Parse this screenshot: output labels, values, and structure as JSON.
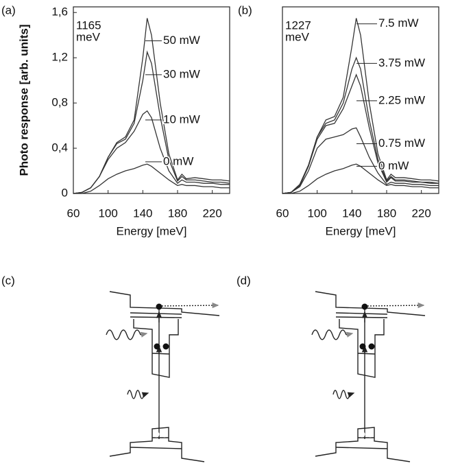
{
  "chart_data": [
    {
      "type": "line",
      "panel": "(a)",
      "annotation": [
        "1165",
        "meV"
      ],
      "x_label": "Energy [meV]",
      "y_label": "Photo response [arb. units]",
      "x": [
        60,
        70,
        80,
        90,
        100,
        110,
        120,
        130,
        140,
        145,
        150,
        160,
        170,
        180,
        185,
        190,
        200,
        210,
        220,
        230,
        240
      ],
      "xlim": [
        60,
        240
      ],
      "xticks": [
        60,
        100,
        140,
        180,
        220
      ],
      "ylim": [
        0,
        1.65
      ],
      "yticks": [
        0,
        {
          "value": 0.4,
          "label": "0,4"
        },
        {
          "value": 0.8,
          "label": "0,8"
        },
        {
          "value": 1.2,
          "label": "1,2"
        },
        {
          "value": 1.6,
          "label": "1,6"
        }
      ],
      "series": [
        {
          "name": "50 mW",
          "color": "#333333",
          "values": [
            0,
            0.01,
            0.05,
            0.15,
            0.32,
            0.45,
            0.5,
            0.65,
            1.2,
            1.55,
            1.4,
            0.8,
            0.35,
            0.12,
            0.17,
            0.13,
            0.14,
            0.13,
            0.12,
            0.12,
            0.11
          ]
        },
        {
          "name": "30 mW",
          "color": "#333333",
          "values": [
            0,
            0.01,
            0.05,
            0.15,
            0.32,
            0.44,
            0.48,
            0.62,
            1.0,
            1.25,
            1.15,
            0.68,
            0.3,
            0.11,
            0.15,
            0.12,
            0.12,
            0.11,
            0.1,
            0.1,
            0.09
          ]
        },
        {
          "name": "10 mW",
          "color": "#333333",
          "values": [
            0,
            0.01,
            0.05,
            0.15,
            0.3,
            0.4,
            0.45,
            0.55,
            0.7,
            0.73,
            0.67,
            0.4,
            0.2,
            0.09,
            0.12,
            0.1,
            0.1,
            0.09,
            0.09,
            0.08,
            0.08
          ]
        },
        {
          "name": "0 mW",
          "color": "#333333",
          "values": [
            0,
            0,
            0.02,
            0.07,
            0.13,
            0.17,
            0.2,
            0.22,
            0.25,
            0.26,
            0.24,
            0.18,
            0.12,
            0.07,
            0.08,
            0.07,
            0.07,
            0.06,
            0.06,
            0.05,
            0.05
          ]
        }
      ]
    },
    {
      "type": "line",
      "panel": "(b)",
      "annotation": [
        "1227",
        "meV"
      ],
      "x_label": "Energy [meV]",
      "x": [
        60,
        70,
        80,
        90,
        100,
        110,
        120,
        130,
        140,
        145,
        150,
        160,
        170,
        180,
        185,
        190,
        200,
        210,
        220,
        230,
        240
      ],
      "xlim": [
        60,
        240
      ],
      "xticks": [
        60,
        100,
        140,
        180,
        220
      ],
      "ylim": [
        0,
        1.65
      ],
      "series": [
        {
          "name": "7.5 mW",
          "color": "#333333",
          "values": [
            0,
            0.01,
            0.08,
            0.25,
            0.5,
            0.65,
            0.68,
            0.85,
            1.3,
            1.55,
            1.4,
            0.8,
            0.35,
            0.12,
            0.17,
            0.14,
            0.14,
            0.13,
            0.12,
            0.12,
            0.11
          ]
        },
        {
          "name": "3.75 mW",
          "color": "#333333",
          "values": [
            0,
            0.01,
            0.08,
            0.25,
            0.5,
            0.62,
            0.65,
            0.8,
            1.1,
            1.2,
            1.1,
            0.65,
            0.3,
            0.11,
            0.15,
            0.12,
            0.12,
            0.11,
            0.1,
            0.1,
            0.09
          ]
        },
        {
          "name": "2.25 mW",
          "color": "#333333",
          "values": [
            0,
            0.01,
            0.07,
            0.24,
            0.48,
            0.6,
            0.62,
            0.75,
            0.95,
            1.05,
            0.95,
            0.58,
            0.27,
            0.1,
            0.14,
            0.11,
            0.11,
            0.1,
            0.1,
            0.09,
            0.09
          ]
        },
        {
          "name": "0.75 mW",
          "color": "#333333",
          "values": [
            0,
            0.01,
            0.06,
            0.2,
            0.4,
            0.48,
            0.5,
            0.52,
            0.57,
            0.58,
            0.5,
            0.32,
            0.18,
            0.08,
            0.1,
            0.09,
            0.09,
            0.08,
            0.08,
            0.07,
            0.07
          ]
        },
        {
          "name": "0 mW",
          "color": "#333333",
          "values": [
            0,
            0,
            0.02,
            0.07,
            0.13,
            0.17,
            0.2,
            0.22,
            0.25,
            0.26,
            0.24,
            0.18,
            0.12,
            0.07,
            0.08,
            0.07,
            0.07,
            0.06,
            0.06,
            0.05,
            0.05
          ]
        }
      ]
    }
  ],
  "diagrams": [
    {
      "panel": "(c)"
    },
    {
      "panel": "(d)"
    }
  ]
}
